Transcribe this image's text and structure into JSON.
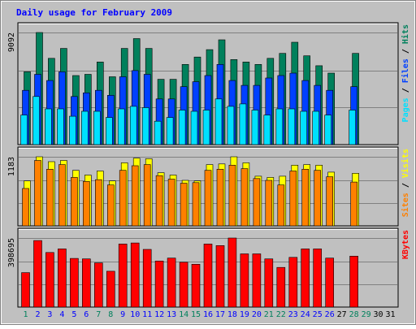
{
  "colors": {
    "background": "#c0c0c0",
    "frame": "#000000",
    "title": "#0000ff",
    "grid": "#808080",
    "hits": "#00805c",
    "files": "#0040ff",
    "pages": "#00e0ff",
    "visits": "#ffff00",
    "sites": "#ff8000",
    "kbytes": "#ff0000",
    "day_weekday": "#0000ff",
    "day_weekend": "#00805c",
    "day_future": "#000000"
  },
  "chart_data": {
    "type": "bar",
    "title": "Daily usage for February 2009",
    "x": [
      "1",
      "2",
      "3",
      "4",
      "5",
      "6",
      "7",
      "8",
      "9",
      "10",
      "11",
      "12",
      "13",
      "14",
      "15",
      "16",
      "17",
      "18",
      "19",
      "20",
      "21",
      "22",
      "23",
      "24",
      "25",
      "26",
      "27",
      "28",
      "29",
      "30",
      "31"
    ],
    "weekend_days": [
      "1",
      "7",
      "8",
      "14",
      "15",
      "21",
      "22",
      "28",
      "29"
    ],
    "panels": [
      {
        "name": "hits-files-pages",
        "ymax_label": "9092",
        "ylim": [
          0,
          9092
        ],
        "legend": [
          {
            "label": "Pages",
            "color_key": "pages"
          },
          {
            "label": "Files",
            "color_key": "files"
          },
          {
            "label": "Hits",
            "color_key": "hits"
          }
        ],
        "series": [
          {
            "name": "Hits",
            "color_key": "hits",
            "values": [
              5900,
              9092,
              7000,
              7800,
              5600,
              5700,
              6700,
              5500,
              7800,
              8600,
              7800,
              5300,
              5300,
              6500,
              7100,
              7700,
              8500,
              6900,
              6700,
              6500,
              7000,
              7400,
              8300,
              7200,
              6400,
              5800,
              0,
              7400,
              0,
              0,
              0
            ]
          },
          {
            "name": "Files",
            "color_key": "files",
            "values": [
              4400,
              5700,
              5200,
              5900,
              3900,
              4200,
              4400,
              4000,
              5500,
              6000,
              5700,
              3700,
              3700,
              4700,
              5100,
              5600,
              6500,
              5200,
              4800,
              4800,
              5400,
              5600,
              5800,
              5200,
              4800,
              4400,
              0,
              4700,
              0,
              0,
              0
            ]
          },
          {
            "name": "Pages",
            "color_key": "pages",
            "values": [
              2400,
              3900,
              2900,
              2900,
              2300,
              2700,
              2700,
              2200,
              2900,
              3100,
              3000,
              1900,
              2200,
              2800,
              2700,
              2800,
              3700,
              3100,
              3300,
              2800,
              2400,
              2900,
              2900,
              2700,
              2700,
              2400,
              0,
              2800,
              0,
              0,
              0
            ]
          }
        ]
      },
      {
        "name": "visits-sites",
        "ymax_label": "1183",
        "ylim": [
          0,
          1183
        ],
        "legend": [
          {
            "label": "Sites",
            "color_key": "sites"
          },
          {
            "label": "Visits",
            "color_key": "visits"
          }
        ],
        "series": [
          {
            "name": "Visits",
            "color_key": "visits",
            "values": [
              770,
              1183,
              1100,
              1120,
              950,
              870,
              940,
              770,
              1080,
              1160,
              1150,
              910,
              870,
              780,
              770,
              1050,
              1060,
              1183,
              1080,
              850,
              830,
              850,
              1040,
              1050,
              1040,
              920,
              0,
              900,
              0,
              0,
              0
            ]
          },
          {
            "name": "Sites",
            "color_key": "sites",
            "values": [
              640,
              1120,
              970,
              1050,
              830,
              760,
              790,
              700,
              950,
              1030,
              1050,
              860,
              800,
              730,
              740,
              950,
              970,
              1040,
              980,
              810,
              780,
              700,
              940,
              970,
              950,
              840,
              0,
              750,
              0,
              0,
              0
            ]
          }
        ]
      },
      {
        "name": "kbytes",
        "ymax_label": "398695",
        "ylim": [
          0,
          398695
        ],
        "legend": [
          {
            "label": "KBytes",
            "color_key": "kbytes"
          }
        ],
        "series": [
          {
            "name": "KBytes",
            "color_key": "kbytes",
            "values": [
              199000,
              384000,
              315000,
              336000,
              281000,
              278000,
              255000,
              207000,
              364000,
              370000,
              333000,
              266000,
              283000,
              259000,
              247000,
              364000,
              355000,
              398695,
              307000,
              307000,
              278000,
              229000,
              287000,
              336000,
              336000,
              283000,
              0,
              294000,
              0,
              0,
              0
            ]
          }
        ]
      }
    ]
  }
}
